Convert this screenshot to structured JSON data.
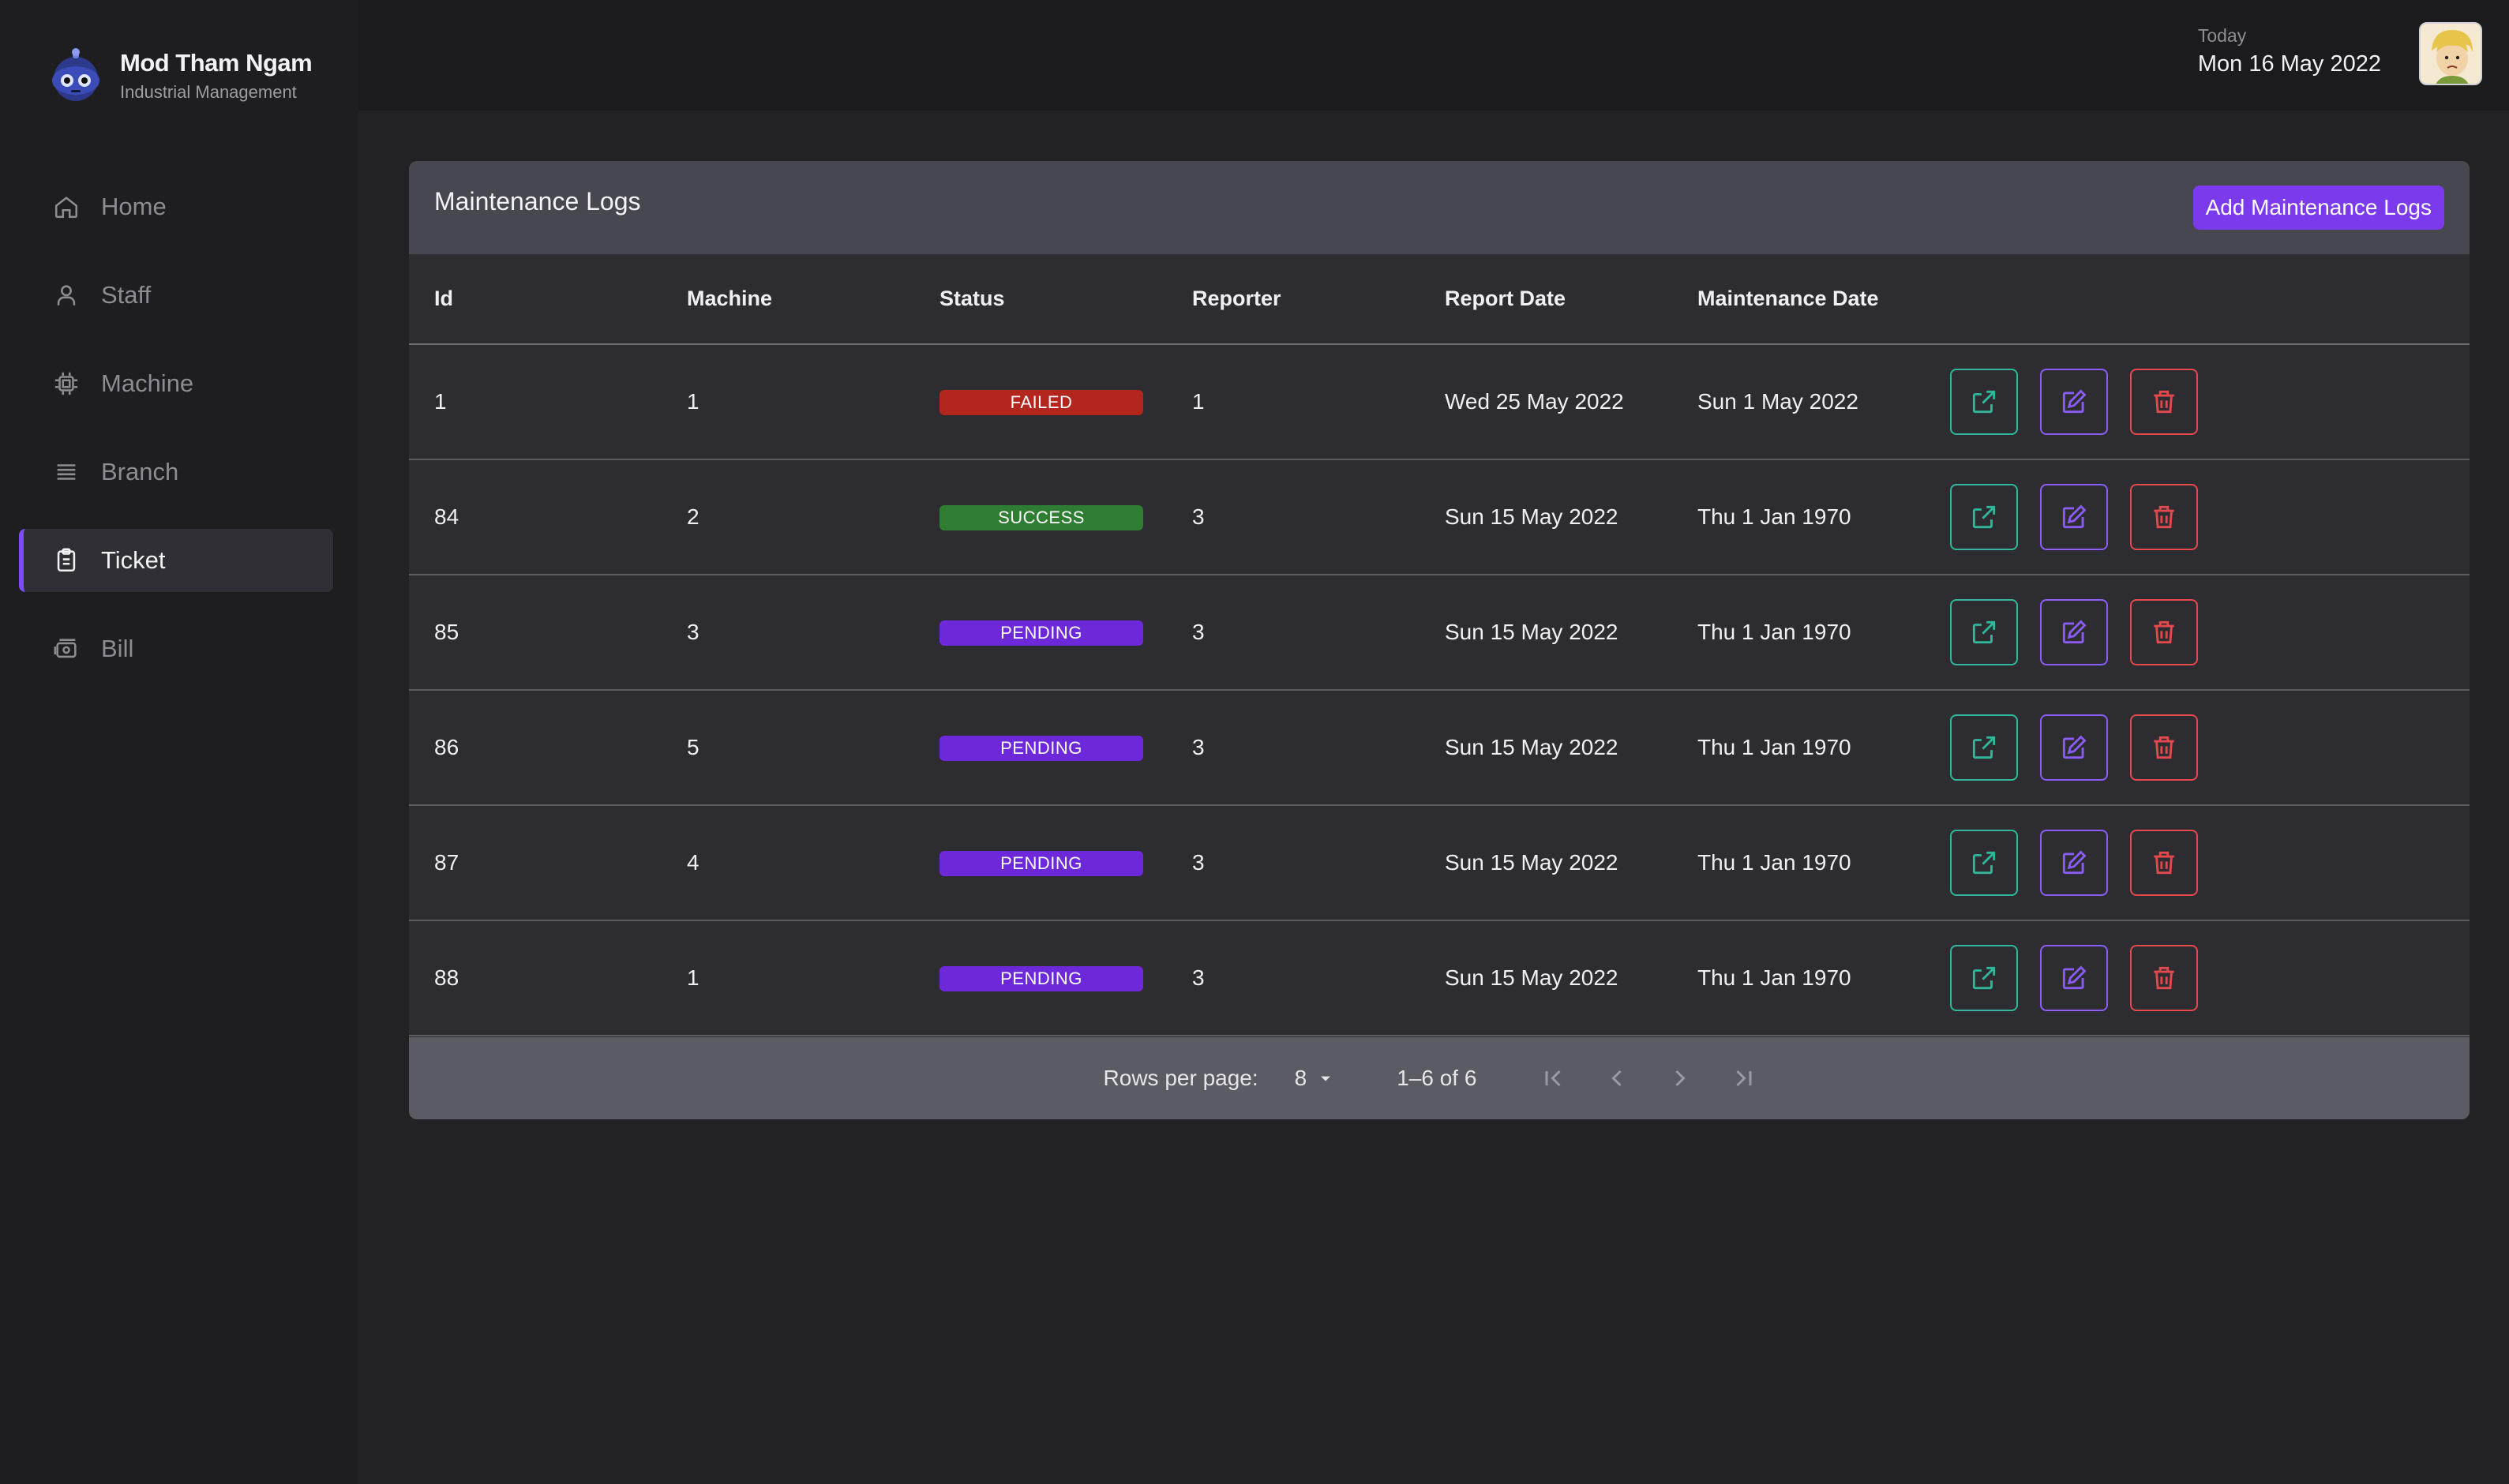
{
  "brand": {
    "title": "Mod Tham Ngam",
    "subtitle": "Industrial Management"
  },
  "sidebar": {
    "items": [
      {
        "label": "Home",
        "icon": "home-icon"
      },
      {
        "label": "Staff",
        "icon": "user-icon"
      },
      {
        "label": "Machine",
        "icon": "cpu-icon"
      },
      {
        "label": "Branch",
        "icon": "list-icon"
      },
      {
        "label": "Ticket",
        "icon": "clipboard-icon",
        "active": true
      },
      {
        "label": "Bill",
        "icon": "cash-icon"
      }
    ]
  },
  "header": {
    "today_label": "Today",
    "today_date": "Mon 16 May 2022"
  },
  "panel": {
    "title": "Maintenance Logs",
    "add_button": "Add Maintenance Logs",
    "columns": [
      "Id",
      "Machine",
      "Status",
      "Reporter",
      "Report Date",
      "Maintenance Date"
    ],
    "rows": [
      {
        "id": "1",
        "machine": "1",
        "status": "FAILED",
        "reporter": "1",
        "report_date": "Wed 25 May 2022",
        "maintenance_date": "Sun 1 May 2022"
      },
      {
        "id": "84",
        "machine": "2",
        "status": "SUCCESS",
        "reporter": "3",
        "report_date": "Sun 15 May 2022",
        "maintenance_date": "Thu 1 Jan 1970"
      },
      {
        "id": "85",
        "machine": "3",
        "status": "PENDING",
        "reporter": "3",
        "report_date": "Sun 15 May 2022",
        "maintenance_date": "Thu 1 Jan 1970"
      },
      {
        "id": "86",
        "machine": "5",
        "status": "PENDING",
        "reporter": "3",
        "report_date": "Sun 15 May 2022",
        "maintenance_date": "Thu 1 Jan 1970"
      },
      {
        "id": "87",
        "machine": "4",
        "status": "PENDING",
        "reporter": "3",
        "report_date": "Sun 15 May 2022",
        "maintenance_date": "Thu 1 Jan 1970"
      },
      {
        "id": "88",
        "machine": "1",
        "status": "PENDING",
        "reporter": "3",
        "report_date": "Sun 15 May 2022",
        "maintenance_date": "Thu 1 Jan 1970"
      }
    ],
    "status_colors": {
      "FAILED": "#b3261e",
      "SUCCESS": "#2e7d32",
      "PENDING": "#6d28d9"
    }
  },
  "pagination": {
    "rows_label": "Rows per page:",
    "rows_value": "8",
    "range": "1–6 of 6"
  },
  "colors": {
    "accent": "#7c3aed",
    "view": "#2fb89c",
    "edit": "#8b5cf6",
    "delete": "#e5484d"
  }
}
